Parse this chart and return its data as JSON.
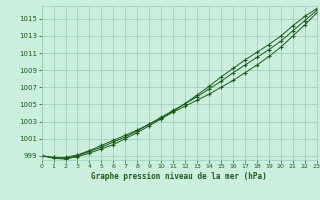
{
  "title": "Graphe pression niveau de la mer (hPa)",
  "x_hours": [
    0,
    1,
    2,
    3,
    4,
    5,
    6,
    7,
    8,
    9,
    10,
    11,
    12,
    13,
    14,
    15,
    16,
    17,
    18,
    19,
    20,
    21,
    22,
    23
  ],
  "line1": [
    999.0,
    998.8,
    998.8,
    999.1,
    999.6,
    1000.2,
    1000.8,
    1001.4,
    1002.0,
    1002.7,
    1003.4,
    1004.1,
    1004.8,
    1005.5,
    1006.2,
    1007.0,
    1007.8,
    1008.7,
    1009.6,
    1010.6,
    1011.7,
    1013.0,
    1014.3,
    1015.7
  ],
  "line2": [
    999.0,
    998.8,
    998.7,
    999.0,
    999.5,
    1000.0,
    1000.6,
    1001.2,
    1001.9,
    1002.7,
    1003.5,
    1004.3,
    1005.1,
    1005.9,
    1006.8,
    1007.7,
    1008.7,
    1009.6,
    1010.5,
    1011.4,
    1012.4,
    1013.6,
    1014.8,
    1016.0
  ],
  "line3": [
    999.0,
    998.7,
    998.6,
    998.9,
    999.3,
    999.8,
    1000.3,
    1001.0,
    1001.7,
    1002.5,
    1003.3,
    1004.2,
    1005.1,
    1006.1,
    1007.1,
    1008.2,
    1009.2,
    1010.2,
    1011.1,
    1012.0,
    1013.0,
    1014.2,
    1015.3,
    1016.2
  ],
  "line_color": "#1a5c1a",
  "bg_color": "#cceedd",
  "grid_color": "#99ccbb",
  "text_color": "#1a5c1a",
  "ylim": [
    998.5,
    1016.5
  ],
  "yticks": [
    999,
    1001,
    1003,
    1005,
    1007,
    1009,
    1011,
    1013,
    1015
  ],
  "xlim": [
    0,
    23
  ],
  "xticks": [
    0,
    1,
    2,
    3,
    4,
    5,
    6,
    7,
    8,
    9,
    10,
    11,
    12,
    13,
    14,
    15,
    16,
    17,
    18,
    19,
    20,
    21,
    22,
    23
  ],
  "marker": "+"
}
